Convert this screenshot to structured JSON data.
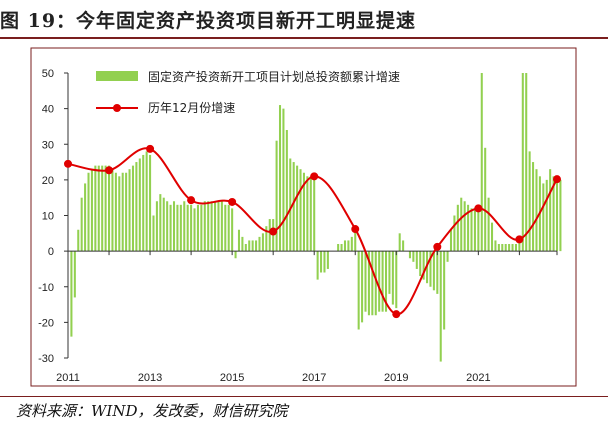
{
  "title": "图 19：今年固定资产投资项目新开工明显提速",
  "source": "资料来源：WIND，发改委，财信研究院",
  "colors": {
    "bar": "#92d050",
    "line": "#e00000",
    "frame": "#7a1e1e",
    "axis": "#333333"
  },
  "chart_data": {
    "type": "bar+line",
    "ylim": [
      -30,
      50
    ],
    "yticks": [
      -30,
      -20,
      -10,
      0,
      10,
      20,
      30,
      40,
      50
    ],
    "xticks": [
      "2011",
      "2013",
      "2015",
      "2017",
      "2019",
      "2021"
    ],
    "x_range": [
      "2011-01",
      "2022-12"
    ],
    "legend_position": "top-left",
    "series": [
      {
        "name": "固定资产投资新开工项目计划总投资额累计增速",
        "type": "bar",
        "x_start": "2011-02",
        "frequency": "monthly",
        "values": [
          -24,
          -13,
          6,
          15,
          19,
          22,
          23,
          24,
          24,
          24,
          24,
          24,
          23,
          22,
          21,
          22,
          22,
          23,
          24,
          25,
          26,
          27,
          28,
          27,
          10,
          14,
          16,
          15,
          14,
          13,
          14,
          13,
          13,
          14,
          13,
          13,
          12,
          13,
          13,
          14,
          14,
          14,
          14,
          14,
          14,
          13,
          13,
          12,
          -2,
          6,
          4,
          2,
          3,
          3,
          3,
          4,
          5,
          7,
          9,
          9,
          31,
          41,
          40,
          34,
          26,
          25,
          24,
          23,
          22,
          21,
          21,
          21,
          -8,
          -6,
          -6,
          -5,
          0,
          0,
          2,
          2,
          3,
          3,
          4,
          7,
          -22,
          -20,
          -17,
          -18,
          -18,
          -18,
          -17,
          -17,
          -17,
          -12,
          -15,
          -16,
          5,
          3,
          0,
          -2,
          -3,
          -5,
          -7,
          -8,
          -9,
          -10,
          -11,
          -12,
          -31,
          -22,
          -3,
          6,
          10,
          13,
          15,
          14,
          13,
          12,
          12,
          12,
          50,
          29,
          15,
          8,
          3,
          2,
          2,
          2,
          2,
          2,
          2,
          3,
          50,
          50,
          28,
          25,
          23,
          21,
          19,
          20,
          23,
          21,
          20,
          20
        ]
      },
      {
        "name": "历年12月份增速",
        "type": "line",
        "smooth": true,
        "points": [
          {
            "x": "2011-01",
            "y": 24.5
          },
          {
            "x": "2012-01",
            "y": 22.7
          },
          {
            "x": "2013-01",
            "y": 28.7
          },
          {
            "x": "2014-01",
            "y": 14.3
          },
          {
            "x": "2015-01",
            "y": 13.8
          },
          {
            "x": "2016-01",
            "y": 5.5
          },
          {
            "x": "2017-01",
            "y": 21.0
          },
          {
            "x": "2018-01",
            "y": 6.2
          },
          {
            "x": "2019-01",
            "y": -17.7
          },
          {
            "x": "2020-01",
            "y": 1.2
          },
          {
            "x": "2021-01",
            "y": 12.0
          },
          {
            "x": "2022-01",
            "y": 3.3
          },
          {
            "x": "2022-12",
            "y": 20.2
          }
        ]
      }
    ]
  }
}
